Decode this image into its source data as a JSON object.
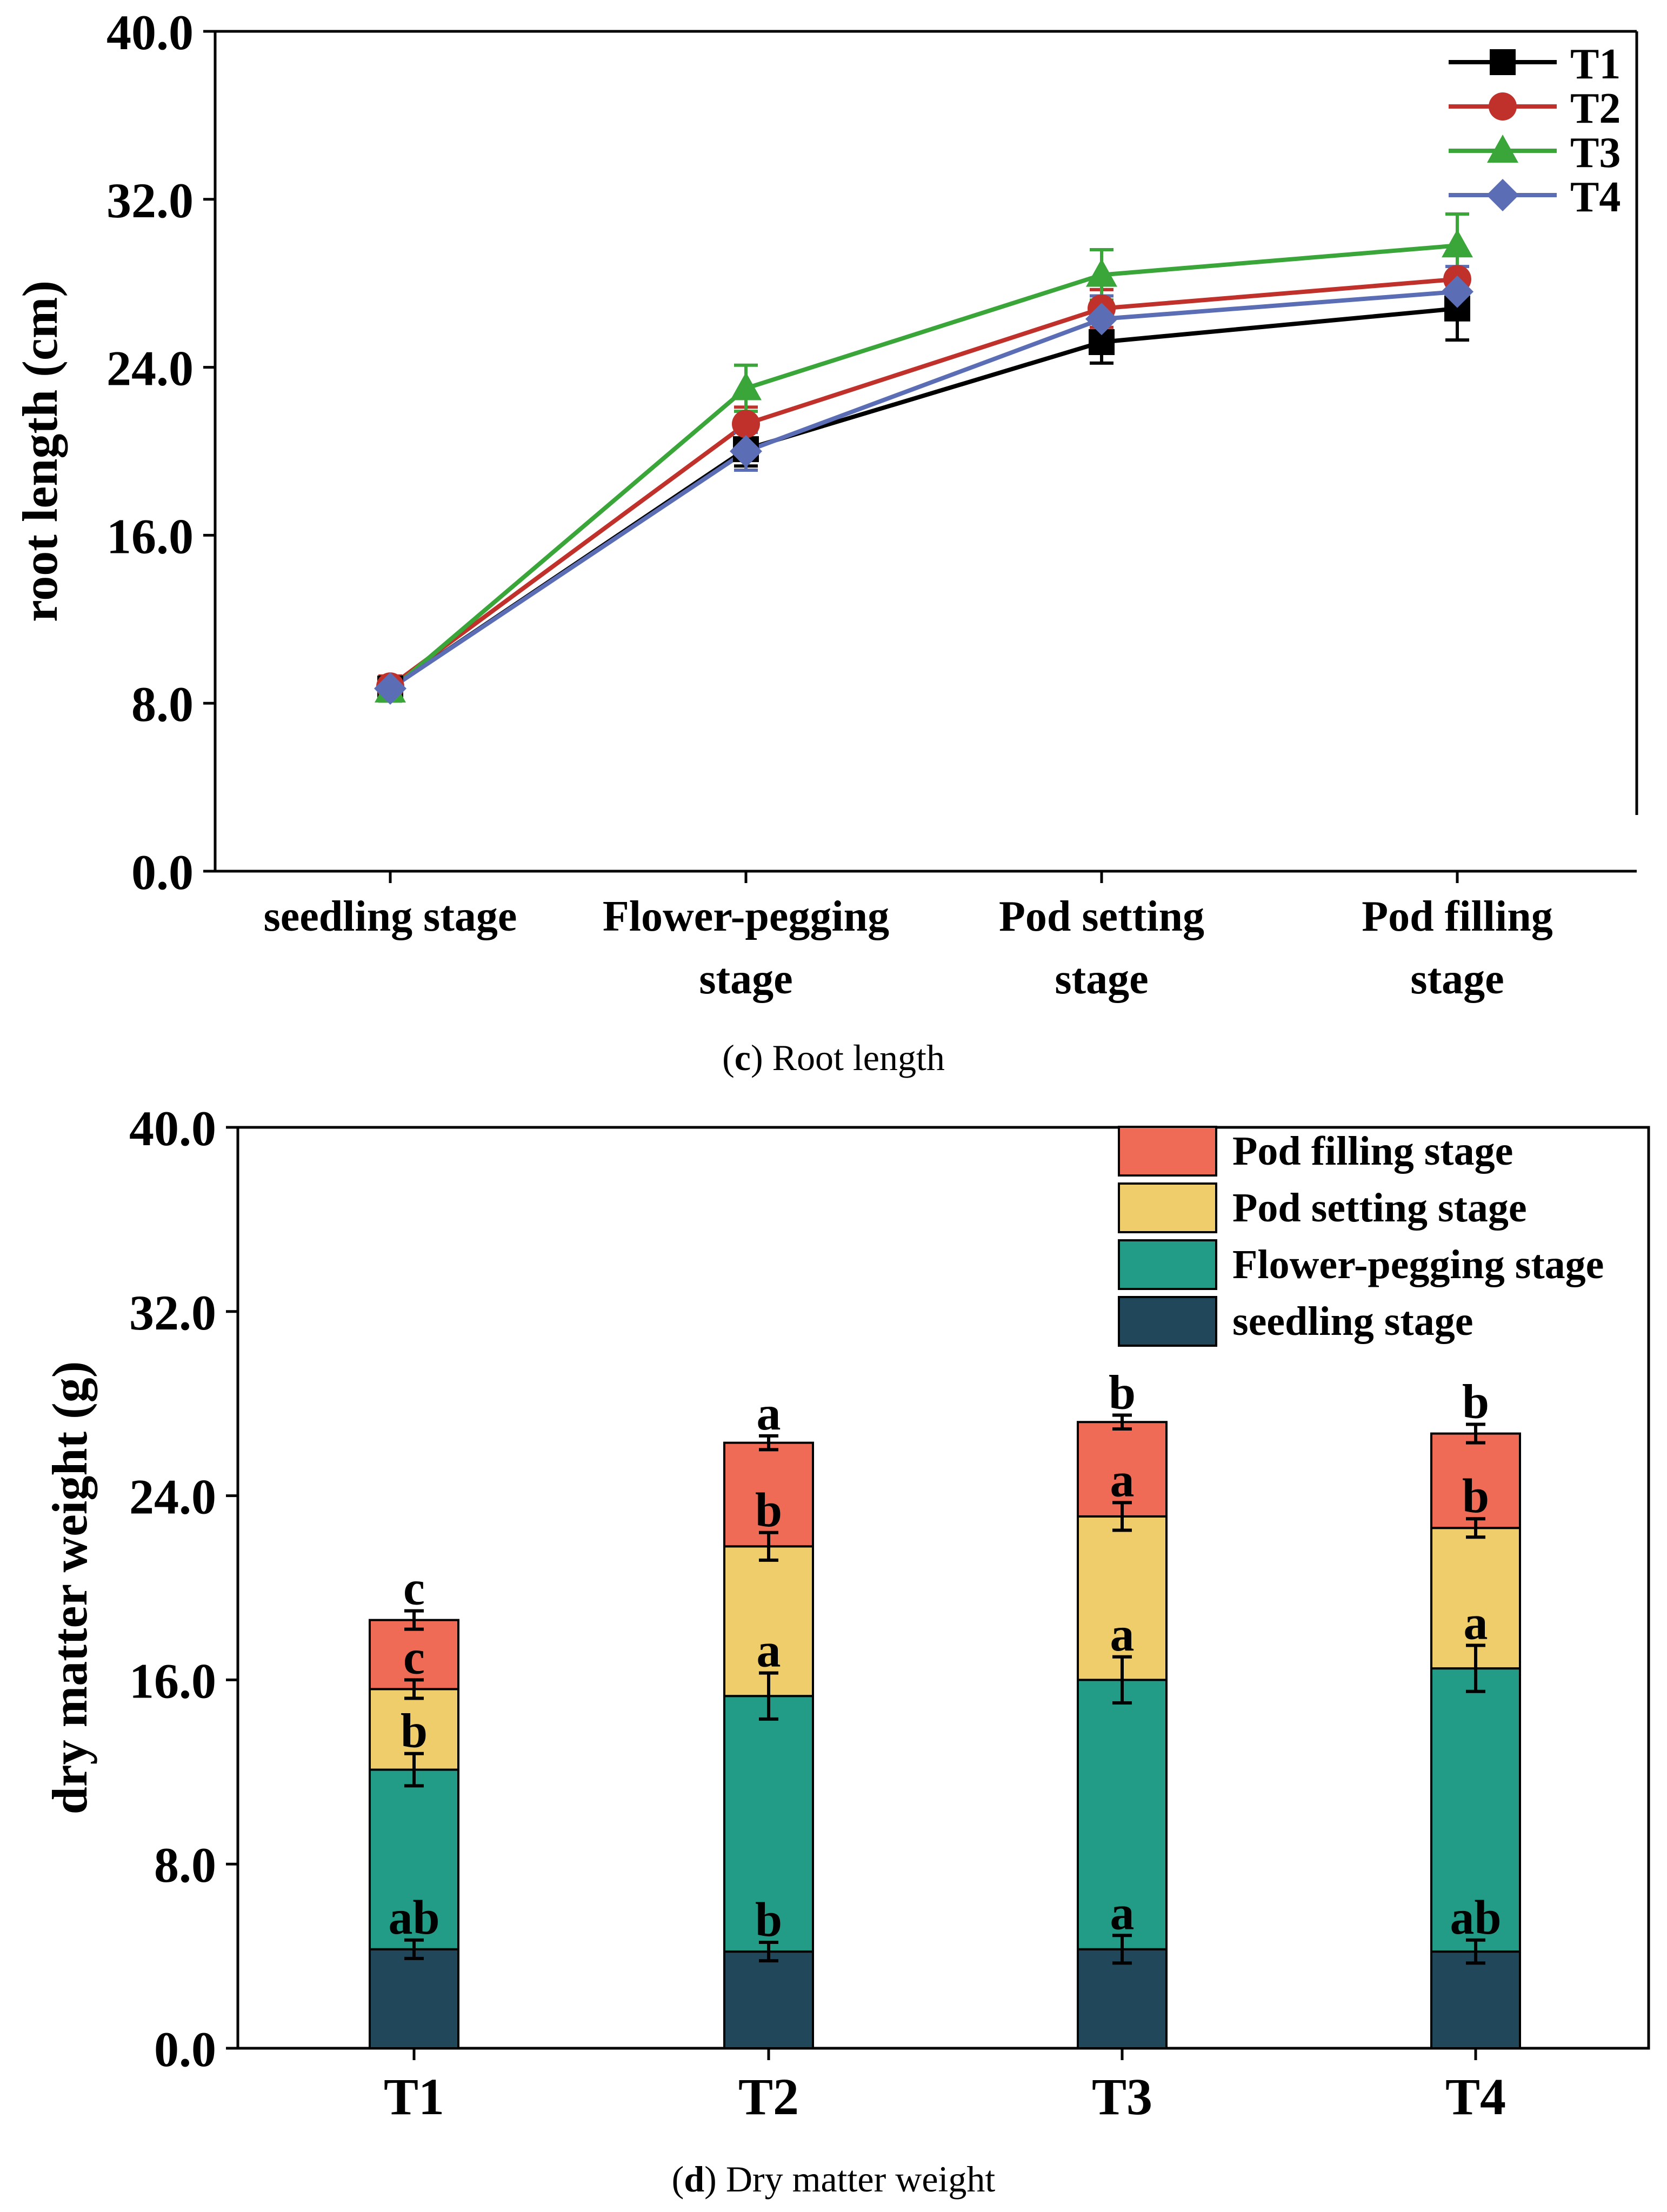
{
  "chart_data": [
    {
      "type": "line",
      "panel": "c",
      "caption_label": "c",
      "caption_text": " Root length",
      "ylabel": "root length (cm)",
      "xlabel": "",
      "ylim": [
        0,
        40
      ],
      "yticks": [
        "0.0",
        "8.0",
        "16.0",
        "24.0",
        "32.0",
        "40.0"
      ],
      "ytick_values": [
        0,
        8,
        16,
        24,
        32,
        40
      ],
      "categories": [
        [
          "seedling stage"
        ],
        [
          "Flower-pegging",
          "stage"
        ],
        [
          "Pod setting",
          "stage"
        ],
        [
          "Pod filling",
          "stage"
        ]
      ],
      "legend_position": "top-right",
      "series": [
        {
          "name": "T1",
          "color": "#000000",
          "marker": "square",
          "values": [
            8.7,
            20.1,
            25.2,
            26.8
          ],
          "errors": [
            0.5,
            0.8,
            1.0,
            1.5
          ]
        },
        {
          "name": "T2",
          "color": "#c0312b",
          "marker": "circle",
          "values": [
            8.8,
            21.3,
            26.8,
            28.2
          ],
          "errors": [
            0.5,
            0.8,
            0.9,
            1.3
          ]
        },
        {
          "name": "T3",
          "color": "#3aa63a",
          "marker": "triangle",
          "values": [
            8.6,
            23.0,
            28.4,
            29.8
          ],
          "errors": [
            0.5,
            1.1,
            1.2,
            1.5
          ]
        },
        {
          "name": "T4",
          "color": "#5a6db5",
          "marker": "diamond",
          "values": [
            8.7,
            20.0,
            26.3,
            27.6
          ],
          "errors": [
            0.5,
            0.9,
            1.1,
            1.2
          ]
        }
      ]
    },
    {
      "type": "bar",
      "stacked": true,
      "panel": "d",
      "caption_label": "d",
      "caption_text": " Dry matter weight",
      "ylabel": "dry matter weight (g)",
      "xlabel": "",
      "ylim": [
        0,
        40
      ],
      "yticks": [
        "0.0",
        "8.0",
        "16.0",
        "24.0",
        "32.0",
        "40.0"
      ],
      "ytick_values": [
        0,
        8,
        16,
        24,
        32,
        40
      ],
      "categories": [
        "T1",
        "T2",
        "T3",
        "T4"
      ],
      "legend_position": "top-right",
      "series": [
        {
          "name": "seedling stage",
          "color": "#21475a",
          "cumulative": [
            4.3,
            4.2,
            4.3,
            4.2
          ],
          "errors": [
            0.4,
            0.4,
            0.6,
            0.5
          ],
          "labels": [
            "ab",
            "b",
            "a",
            "ab"
          ]
        },
        {
          "name": "Flower-pegging stage",
          "color": "#229b87",
          "cumulative": [
            12.1,
            15.3,
            16.0,
            16.5
          ],
          "errors": [
            0.7,
            1.0,
            1.0,
            1.0
          ],
          "labels": [
            "b",
            "a",
            "a",
            "a"
          ]
        },
        {
          "name": "Pod setting stage",
          "color": "#efcd6b",
          "cumulative": [
            15.6,
            21.8,
            23.1,
            22.6
          ],
          "errors": [
            0.4,
            0.6,
            0.6,
            0.4
          ],
          "labels": [
            "c",
            "b",
            "a",
            "b"
          ]
        },
        {
          "name": "Pod filling stage",
          "color": "#ef6b56",
          "cumulative": [
            18.6,
            26.3,
            27.2,
            26.7
          ],
          "errors": [
            0.4,
            0.3,
            0.3,
            0.4
          ],
          "labels": [
            "c",
            "a",
            "b",
            "b"
          ]
        }
      ]
    }
  ]
}
